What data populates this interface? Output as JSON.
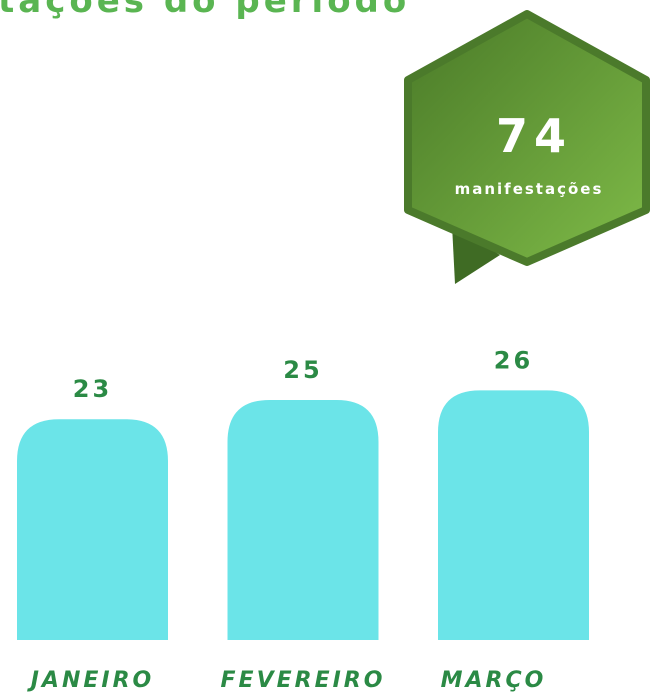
{
  "chart_data": {
    "type": "bar",
    "title": "tações do período",
    "total": 74,
    "total_label": "manifestações",
    "categories": [
      "JANEIRO",
      "FEVEREIRO",
      "MARÇO"
    ],
    "values": [
      23,
      25,
      26
    ],
    "color": "#6be4e8"
  }
}
